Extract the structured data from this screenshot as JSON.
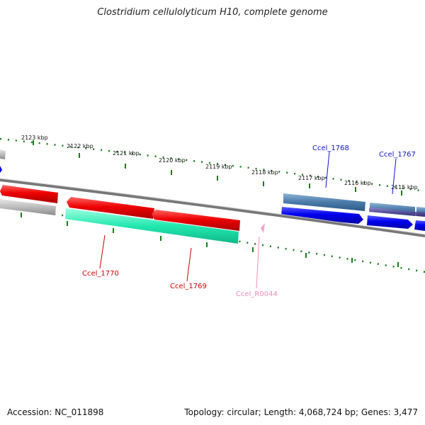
{
  "title": "Clostridium cellulolyticum H10, complete genome",
  "footer": {
    "accession": "Accession: NC_011898",
    "stats": "Topology: circular; Length: 4,068,724 bp; Genes: 3,477"
  },
  "ruler": {
    "ticks": [
      {
        "label": "2123 kbp"
      },
      {
        "label": "2122 kbp"
      },
      {
        "label": "2121 kbp"
      },
      {
        "label": "2120 kbp"
      },
      {
        "label": "2119 kbp"
      },
      {
        "label": "2118 kbp"
      },
      {
        "label": "2117 kbp"
      },
      {
        "label": "2116 kbp"
      },
      {
        "label": "2115 kbp"
      }
    ]
  },
  "genes": [
    {
      "name": "Ccel_1770",
      "color": "#cc0000",
      "strand": "minus"
    },
    {
      "name": "Ccel_1769",
      "color": "#cc0000",
      "strand": "minus"
    },
    {
      "name": "Ccel_R0044",
      "color": "#f08cb4",
      "strand": "minus"
    },
    {
      "name": "Ccel_1768",
      "color": "#1010c8",
      "strand": "plus"
    },
    {
      "name": "Ccel_1767",
      "color": "#1010c8",
      "strand": "plus"
    }
  ],
  "colors": {
    "forward_cds": "#0000ee",
    "reverse_cds": "#ee0000",
    "forward_other": "#4a7aa8",
    "reverse_other": "#22e8b0",
    "backbone": "#777777",
    "ruler_dots": "#1a7a1a",
    "rna": "#f4a0c8",
    "grey_feature": "#bbbbbb"
  }
}
